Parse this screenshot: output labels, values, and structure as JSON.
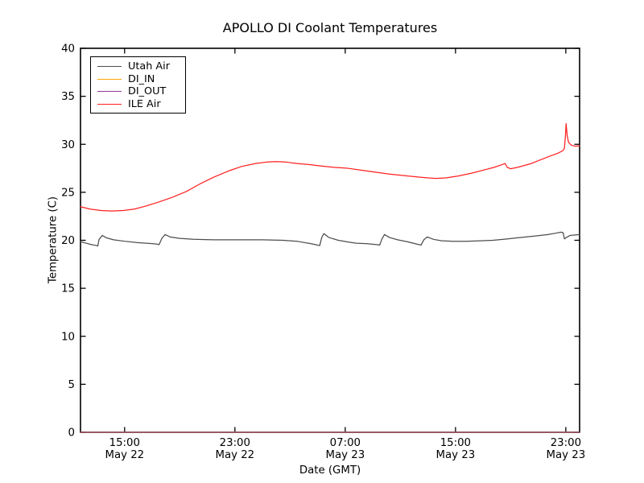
{
  "chart_data": {
    "type": "line",
    "title": "APOLLO DI Coolant Temperatures",
    "xlabel": "Date (GMT)",
    "ylabel": "Temperature (C)",
    "grid": false,
    "legend_position": "upper-left",
    "x_axis": {
      "unit": "hours since May 22 00:00 GMT",
      "range": [
        11.8,
        48.0
      ],
      "ticks": [
        {
          "t": 15,
          "time": "15:00",
          "date": "May 22"
        },
        {
          "t": 23,
          "time": "23:00",
          "date": "May 22"
        },
        {
          "t": 31,
          "time": "07:00",
          "date": "May 23"
        },
        {
          "t": 39,
          "time": "15:00",
          "date": "May 23"
        },
        {
          "t": 47,
          "time": "23:00",
          "date": "May 23"
        }
      ]
    },
    "y_axis": {
      "range": [
        0,
        40
      ],
      "ticks": [
        0,
        5,
        10,
        15,
        20,
        25,
        30,
        35,
        40
      ]
    },
    "series": [
      {
        "name": "Utah Air",
        "color": "#4d4d4d",
        "opacity": 1,
        "points": [
          [
            11.8,
            19.85
          ],
          [
            12.2,
            19.7
          ],
          [
            12.6,
            19.55
          ],
          [
            12.97,
            19.45
          ],
          [
            13.05,
            19.4
          ],
          [
            13.15,
            20.1
          ],
          [
            13.38,
            20.5
          ],
          [
            13.7,
            20.25
          ],
          [
            14.2,
            20.05
          ],
          [
            15.0,
            19.9
          ],
          [
            16.0,
            19.75
          ],
          [
            17.0,
            19.65
          ],
          [
            17.35,
            19.6
          ],
          [
            17.5,
            19.55
          ],
          [
            17.7,
            20.2
          ],
          [
            17.93,
            20.6
          ],
          [
            18.3,
            20.35
          ],
          [
            19.0,
            20.2
          ],
          [
            20.0,
            20.1
          ],
          [
            21.5,
            20.05
          ],
          [
            23.0,
            20.05
          ],
          [
            25.0,
            20.05
          ],
          [
            26.5,
            20.0
          ],
          [
            27.5,
            19.9
          ],
          [
            28.5,
            19.65
          ],
          [
            29.0,
            19.5
          ],
          [
            29.15,
            19.45
          ],
          [
            29.3,
            20.3
          ],
          [
            29.45,
            20.7
          ],
          [
            29.8,
            20.3
          ],
          [
            30.5,
            20.0
          ],
          [
            31.3,
            19.8
          ],
          [
            31.8,
            19.7
          ],
          [
            32.5,
            19.65
          ],
          [
            33.3,
            19.55
          ],
          [
            33.5,
            19.5
          ],
          [
            33.65,
            20.1
          ],
          [
            33.85,
            20.6
          ],
          [
            34.2,
            20.3
          ],
          [
            34.8,
            20.05
          ],
          [
            35.5,
            19.85
          ],
          [
            36.2,
            19.6
          ],
          [
            36.5,
            19.5
          ],
          [
            36.7,
            20.05
          ],
          [
            36.95,
            20.35
          ],
          [
            37.4,
            20.1
          ],
          [
            38.0,
            19.95
          ],
          [
            38.8,
            19.9
          ],
          [
            39.8,
            19.9
          ],
          [
            40.8,
            19.95
          ],
          [
            41.7,
            20.0
          ],
          [
            42.8,
            20.15
          ],
          [
            43.8,
            20.3
          ],
          [
            44.8,
            20.45
          ],
          [
            45.7,
            20.6
          ],
          [
            46.3,
            20.75
          ],
          [
            46.65,
            20.85
          ],
          [
            46.8,
            20.8
          ],
          [
            46.9,
            20.15
          ],
          [
            47.05,
            20.3
          ],
          [
            47.3,
            20.5
          ],
          [
            47.6,
            20.55
          ],
          [
            48.0,
            20.6
          ]
        ]
      },
      {
        "name": "DI_IN",
        "color": "#ffa500",
        "opacity": 0.9,
        "points": [
          [
            11.8,
            0
          ],
          [
            48.0,
            0
          ]
        ]
      },
      {
        "name": "DI_OUT",
        "color": "#913a96",
        "opacity": 0.75,
        "points": [
          [
            11.8,
            0
          ],
          [
            48.0,
            0
          ]
        ]
      },
      {
        "name": "ILE Air",
        "color": "#ff2020",
        "opacity": 1,
        "points": [
          [
            11.8,
            23.5
          ],
          [
            12.5,
            23.25
          ],
          [
            13.3,
            23.1
          ],
          [
            14.1,
            23.05
          ],
          [
            14.9,
            23.1
          ],
          [
            15.7,
            23.25
          ],
          [
            16.5,
            23.55
          ],
          [
            17.5,
            24.0
          ],
          [
            18.5,
            24.5
          ],
          [
            19.5,
            25.1
          ],
          [
            20.5,
            25.9
          ],
          [
            21.5,
            26.6
          ],
          [
            22.5,
            27.2
          ],
          [
            23.5,
            27.7
          ],
          [
            24.5,
            28.0
          ],
          [
            25.3,
            28.15
          ],
          [
            26.0,
            28.2
          ],
          [
            26.7,
            28.15
          ],
          [
            27.5,
            28.0
          ],
          [
            28.3,
            27.9
          ],
          [
            29.2,
            27.75
          ],
          [
            30.2,
            27.6
          ],
          [
            31.2,
            27.5
          ],
          [
            32.2,
            27.3
          ],
          [
            33.2,
            27.1
          ],
          [
            34.2,
            26.9
          ],
          [
            35.2,
            26.75
          ],
          [
            36.2,
            26.6
          ],
          [
            37.0,
            26.5
          ],
          [
            37.6,
            26.45
          ],
          [
            38.3,
            26.5
          ],
          [
            39.2,
            26.7
          ],
          [
            40.2,
            27.0
          ],
          [
            41.0,
            27.3
          ],
          [
            41.8,
            27.6
          ],
          [
            42.4,
            27.9
          ],
          [
            42.6,
            28.0
          ],
          [
            42.75,
            27.6
          ],
          [
            43.0,
            27.45
          ],
          [
            43.5,
            27.6
          ],
          [
            44.0,
            27.8
          ],
          [
            44.5,
            28.0
          ],
          [
            45.2,
            28.4
          ],
          [
            45.9,
            28.8
          ],
          [
            46.4,
            29.05
          ],
          [
            46.8,
            29.35
          ],
          [
            46.9,
            29.6
          ],
          [
            46.98,
            31.0
          ],
          [
            47.02,
            32.15
          ],
          [
            47.1,
            30.9
          ],
          [
            47.2,
            30.2
          ],
          [
            47.4,
            29.9
          ],
          [
            47.7,
            29.8
          ],
          [
            48.0,
            29.85
          ]
        ]
      }
    ],
    "axis_color": "#000000",
    "background": "#ffffff"
  }
}
